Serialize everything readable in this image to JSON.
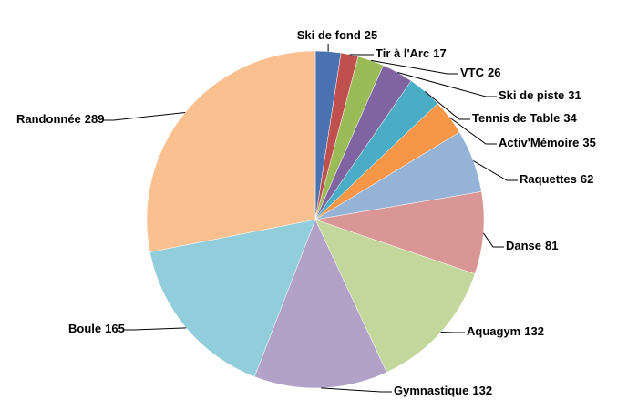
{
  "chart_data": {
    "type": "pie",
    "categories": [
      "Ski de fond",
      "Tir à l'Arc",
      "VTC",
      "Ski de piste",
      "Tennis de Table",
      "Activ'Mémoire",
      "Raquettes",
      "Danse",
      "Aquagym",
      "Gymnastique",
      "Boule",
      "Randonnée"
    ],
    "values": [
      25,
      17,
      26,
      31,
      34,
      35,
      62,
      81,
      132,
      132,
      165,
      289
    ],
    "colors": [
      "#4a72b0",
      "#c0504d",
      "#9bbb59",
      "#8064a2",
      "#4bacc6",
      "#f79646",
      "#95b3d7",
      "#d99694",
      "#c3d69b",
      "#b2a2c7",
      "#92cddc",
      "#fac090"
    ]
  }
}
